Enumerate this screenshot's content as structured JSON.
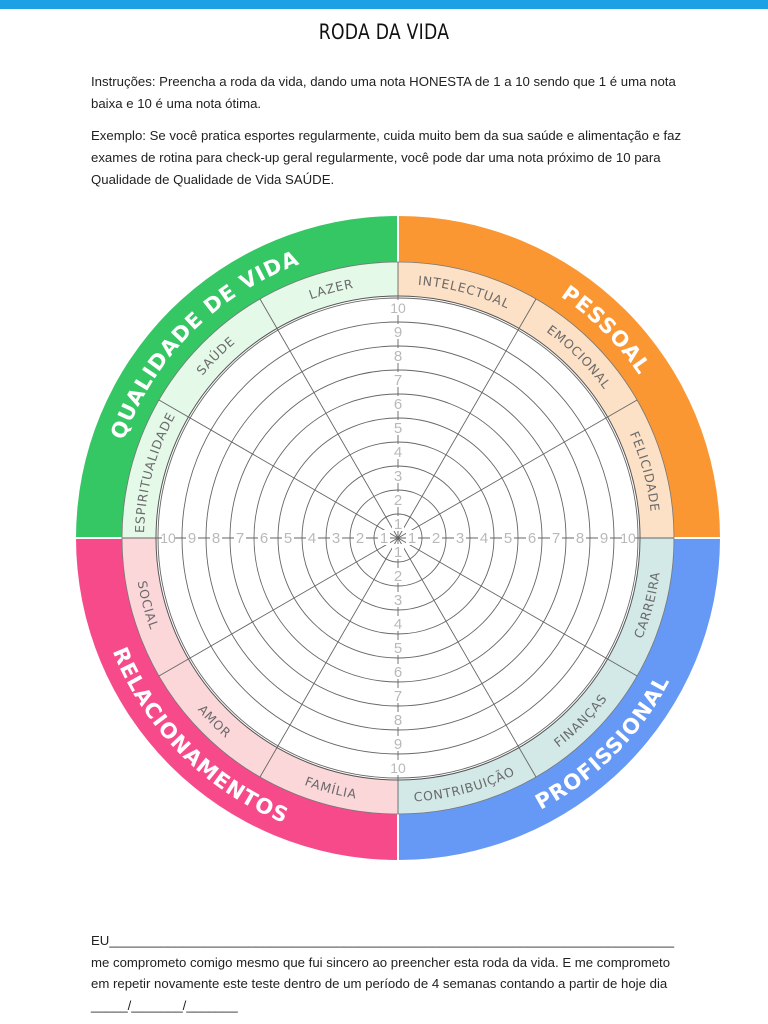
{
  "header": {
    "title": "RODA DA VIDA"
  },
  "instructions": {
    "text": "Instruções: Preencha a roda da vida, dando uma nota HONESTA de 1 a 10 sendo que 1 é uma nota baixa e 10 é uma nota ótima.",
    "example": "Exemplo: Se você pratica esportes regularmente, cuida muito bem da sua saúde e alimentação e faz exames de rotina para check-up geral regularmente, você pode dar uma nota próximo de 10 para Qualidade de Qualidade de Vida SAÚDE."
  },
  "wheel": {
    "scale": [
      "1",
      "2",
      "3",
      "4",
      "5",
      "6",
      "7",
      "8",
      "9",
      "10"
    ],
    "quadrants": [
      {
        "label": "QUALIDADE DE VIDA",
        "color": "#35c764",
        "light": "#e4f9e7"
      },
      {
        "label": "PESSOAL",
        "color": "#fb9733",
        "light": "#fde1c6"
      },
      {
        "label": "PROFISSIONAL",
        "color": "#6599f5",
        "light": "#d3e9e8"
      },
      {
        "label": "RELACIONAMENTOS",
        "color": "#f74a8a",
        "light": "#fcd7da"
      }
    ],
    "segments": [
      "LAZER",
      "INTELECTUAL",
      "EMOCIONAL",
      "FELICIDADE",
      "CARREIRA",
      "FINANÇAS",
      "CONTRIBUIÇÃO",
      "FAMÍLIA",
      "AMOR",
      "SOCIAL",
      "ESPIRITUALIDADE",
      "SAÚDE"
    ]
  },
  "footer": {
    "commitment": "EU_____________________________________________________________________________ me comprometo comigo mesmo que fui sincero ao preencher esta roda da vida. E me comprometo em repetir novamente este teste dentro de um período de 4 semanas contando a partir de hoje dia _____/_______/_______"
  }
}
